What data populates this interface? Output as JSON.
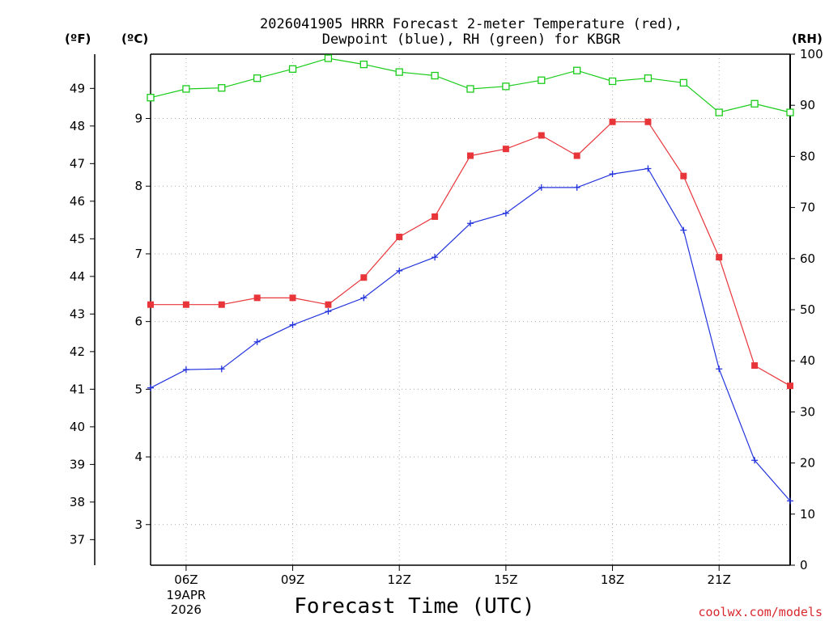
{
  "chart_data": {
    "type": "line",
    "title_line1": "2026041905 HRRR Forecast 2-meter Temperature (red),",
    "title_line2": "Dewpoint (blue), RH (green) for KBGR",
    "xlabel": "Forecast Time (UTC)",
    "credit": "coolwx.com/models",
    "units": {
      "fahrenheit": "(ºF)",
      "celsius": "(ºC)",
      "rh": "(RH)"
    },
    "x_hours": [
      5,
      6,
      7,
      8,
      9,
      10,
      11,
      12,
      13,
      14,
      15,
      16,
      17,
      18,
      19,
      20,
      21,
      22,
      23
    ],
    "xlim": [
      5,
      23
    ],
    "x_ticks": [
      {
        "hour": 6,
        "label": "06Z",
        "sub1": "19APR",
        "sub2": "2026"
      },
      {
        "hour": 9,
        "label": "09Z"
      },
      {
        "hour": 12,
        "label": "12Z"
      },
      {
        "hour": 15,
        "label": "15Z"
      },
      {
        "hour": 18,
        "label": "18Z"
      },
      {
        "hour": 21,
        "label": "21Z"
      }
    ],
    "celsius_axis": {
      "range": [
        2.4,
        9.95
      ],
      "ticks": [
        "3",
        "4",
        "5",
        "6",
        "7",
        "8",
        "9"
      ]
    },
    "fahrenheit_axis": {
      "ticks": [
        "37",
        "38",
        "39",
        "40",
        "41",
        "42",
        "43",
        "44",
        "45",
        "46",
        "47",
        "48",
        "49"
      ]
    },
    "rh_axis": {
      "range": [
        0,
        100
      ],
      "ticks": [
        "0",
        "10",
        "20",
        "30",
        "40",
        "50",
        "60",
        "70",
        "80",
        "90",
        "100"
      ]
    },
    "series": [
      {
        "name": "2-meter Temperature",
        "unit": "C",
        "color": "#e8353a",
        "marker": "square",
        "values": [
          6.25,
          6.25,
          6.25,
          6.35,
          6.35,
          6.25,
          6.65,
          7.25,
          7.55,
          8.45,
          8.55,
          8.75,
          8.45,
          8.95,
          8.95,
          8.15,
          6.95,
          5.35,
          5.05
        ]
      },
      {
        "name": "Dewpoint",
        "unit": "C",
        "color": "#2233dd",
        "marker": "plus",
        "values": [
          5.02,
          5.29,
          5.3,
          5.7,
          5.95,
          6.15,
          6.35,
          6.75,
          6.95,
          7.45,
          7.6,
          7.98,
          7.98,
          8.18,
          8.26,
          7.35,
          5.3,
          3.95,
          3.35
        ]
      },
      {
        "name": "RH",
        "unit": "%",
        "color": "#19cc19",
        "marker": "open-square",
        "values": [
          91.5,
          93.2,
          93.4,
          95.3,
          97.1,
          99.2,
          98.0,
          96.5,
          95.8,
          93.2,
          93.7,
          94.9,
          96.8,
          94.7,
          95.3,
          94.4,
          88.6,
          90.3,
          88.6
        ]
      }
    ]
  }
}
